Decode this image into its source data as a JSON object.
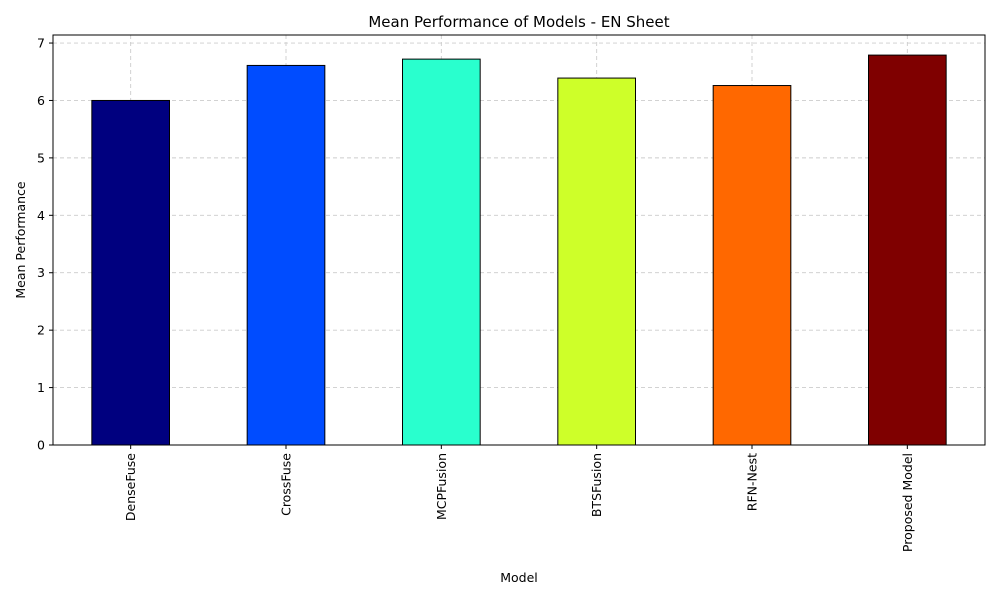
{
  "chart_data": {
    "type": "bar",
    "title": "Mean Performance of Models - EN Sheet",
    "xlabel": "Model",
    "ylabel": "Mean Performance",
    "categories": [
      "DenseFuse",
      "CrossFuse",
      "MCPFusion",
      "BTSFusion",
      "RFN-Nest",
      "Proposed Model"
    ],
    "values": [
      6.0,
      6.61,
      6.72,
      6.39,
      6.26,
      6.79
    ],
    "colors": [
      "#00007f",
      "#004cff",
      "#29ffce",
      "#ceff29",
      "#ff6800",
      "#7f0000"
    ],
    "ylim": [
      0,
      7.14
    ],
    "yticks": [
      "0",
      "1",
      "2",
      "3",
      "4",
      "5",
      "6",
      "7"
    ],
    "grid": true,
    "x_tick_rotation": 90
  }
}
